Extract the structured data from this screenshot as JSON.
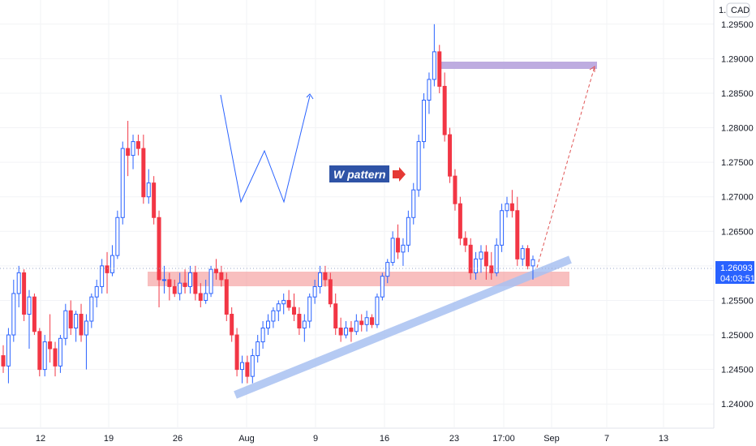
{
  "chart_data": {
    "type": "candlestick",
    "currency_badge": "CAD",
    "currency_prefix": "1.",
    "y_range": [
      1.2365,
      1.2985
    ],
    "y_ticks": [
      "1.24000",
      "1.24500",
      "1.25000",
      "1.25500",
      "1.26000",
      "1.26500",
      "1.27000",
      "1.27500",
      "1.28000",
      "1.28500",
      "1.29000",
      "1.29500"
    ],
    "x_ticks": [
      "12",
      "19",
      "26",
      "Aug",
      "9",
      "16",
      "23",
      "17:00",
      "Sep",
      "7",
      "13"
    ],
    "last_price": "1.26093",
    "countdown": "04:03:51",
    "annotation": "W pattern",
    "candles": [
      [
        1.247,
        1.2485,
        1.2445,
        1.2455
      ],
      [
        1.2455,
        1.251,
        1.243,
        1.25
      ],
      [
        1.25,
        1.258,
        1.249,
        1.256
      ],
      [
        1.256,
        1.26,
        1.254,
        1.259
      ],
      [
        1.259,
        1.2595,
        1.252,
        1.253
      ],
      [
        1.253,
        1.2565,
        1.248,
        1.2555
      ],
      [
        1.2555,
        1.256,
        1.25,
        1.2505
      ],
      [
        1.2505,
        1.251,
        1.244,
        1.245
      ],
      [
        1.245,
        1.25,
        1.244,
        1.249
      ],
      [
        1.249,
        1.253,
        1.246,
        1.248
      ],
      [
        1.248,
        1.249,
        1.244,
        1.2455
      ],
      [
        1.2455,
        1.25,
        1.2445,
        1.2495
      ],
      [
        1.2495,
        1.2545,
        1.2485,
        1.2535
      ],
      [
        1.2535,
        1.255,
        1.25,
        1.251
      ],
      [
        1.251,
        1.2535,
        1.249,
        1.253
      ],
      [
        1.253,
        1.2545,
        1.249,
        1.25
      ],
      [
        1.25,
        1.253,
        1.245,
        1.252
      ],
      [
        1.252,
        1.256,
        1.251,
        1.2555
      ],
      [
        1.2555,
        1.258,
        1.254,
        1.257
      ],
      [
        1.257,
        1.261,
        1.256,
        1.26
      ],
      [
        1.26,
        1.262,
        1.256,
        1.259
      ],
      [
        1.259,
        1.263,
        1.2585,
        1.2615
      ],
      [
        1.2615,
        1.268,
        1.261,
        1.267
      ],
      [
        1.267,
        1.278,
        1.266,
        1.277
      ],
      [
        1.277,
        1.281,
        1.273,
        1.276
      ],
      [
        1.276,
        1.279,
        1.274,
        1.278
      ],
      [
        1.278,
        1.279,
        1.276,
        1.277
      ],
      [
        1.277,
        1.279,
        1.269,
        1.27
      ],
      [
        1.27,
        1.274,
        1.269,
        1.272
      ],
      [
        1.272,
        1.273,
        1.266,
        1.267
      ],
      [
        1.267,
        1.268,
        1.254,
        1.258
      ],
      [
        1.258,
        1.26,
        1.256,
        1.258
      ],
      [
        1.258,
        1.259,
        1.255,
        1.257
      ],
      [
        1.257,
        1.258,
        1.2555,
        1.256
      ],
      [
        1.256,
        1.259,
        1.255,
        1.2575
      ],
      [
        1.2575,
        1.2595,
        1.256,
        1.257
      ],
      [
        1.257,
        1.26,
        1.256,
        1.259
      ],
      [
        1.259,
        1.26,
        1.255,
        1.256
      ],
      [
        1.256,
        1.2575,
        1.254,
        1.255
      ],
      [
        1.255,
        1.258,
        1.2545,
        1.256
      ],
      [
        1.256,
        1.26,
        1.2555,
        1.2595
      ],
      [
        1.2595,
        1.261,
        1.258,
        1.259
      ],
      [
        1.259,
        1.26,
        1.257,
        1.258
      ],
      [
        1.258,
        1.259,
        1.252,
        1.253
      ],
      [
        1.253,
        1.254,
        1.249,
        1.25
      ],
      [
        1.25,
        1.251,
        1.244,
        1.245
      ],
      [
        1.245,
        1.247,
        1.243,
        1.246
      ],
      [
        1.246,
        1.247,
        1.243,
        1.244
      ],
      [
        1.244,
        1.248,
        1.243,
        1.247
      ],
      [
        1.247,
        1.25,
        1.246,
        1.249
      ],
      [
        1.249,
        1.252,
        1.248,
        1.251
      ],
      [
        1.251,
        1.253,
        1.25,
        1.252
      ],
      [
        1.252,
        1.254,
        1.251,
        1.2535
      ],
      [
        1.2535,
        1.255,
        1.252,
        1.2545
      ],
      [
        1.2545,
        1.256,
        1.253,
        1.255
      ],
      [
        1.255,
        1.2565,
        1.2535,
        1.254
      ],
      [
        1.254,
        1.256,
        1.252,
        1.253
      ],
      [
        1.253,
        1.254,
        1.25,
        1.251
      ],
      [
        1.251,
        1.253,
        1.249,
        1.252
      ],
      [
        1.252,
        1.256,
        1.251,
        1.2555
      ],
      [
        1.2555,
        1.258,
        1.2545,
        1.257
      ],
      [
        1.257,
        1.26,
        1.256,
        1.259
      ],
      [
        1.259,
        1.26,
        1.257,
        1.258
      ],
      [
        1.258,
        1.259,
        1.254,
        1.2545
      ],
      [
        1.2545,
        1.256,
        1.25,
        1.251
      ],
      [
        1.251,
        1.2525,
        1.249,
        1.25
      ],
      [
        1.25,
        1.252,
        1.2495,
        1.251
      ],
      [
        1.251,
        1.252,
        1.249,
        1.2505
      ],
      [
        1.2505,
        1.253,
        1.25,
        1.252
      ],
      [
        1.252,
        1.253,
        1.2505,
        1.2515
      ],
      [
        1.2515,
        1.2535,
        1.2505,
        1.2525
      ],
      [
        1.2525,
        1.253,
        1.251,
        1.2515
      ],
      [
        1.2515,
        1.256,
        1.251,
        1.2555
      ],
      [
        1.2555,
        1.259,
        1.255,
        1.2585
      ],
      [
        1.2585,
        1.261,
        1.2575,
        1.2605
      ],
      [
        1.2605,
        1.265,
        1.26,
        1.264
      ],
      [
        1.264,
        1.266,
        1.261,
        1.262
      ],
      [
        1.262,
        1.264,
        1.26,
        1.263
      ],
      [
        1.263,
        1.268,
        1.262,
        1.267
      ],
      [
        1.267,
        1.272,
        1.266,
        1.271
      ],
      [
        1.271,
        1.279,
        1.27,
        1.278
      ],
      [
        1.278,
        1.285,
        1.277,
        1.284
      ],
      [
        1.284,
        1.288,
        1.282,
        1.287
      ],
      [
        1.287,
        1.295,
        1.286,
        1.291
      ],
      [
        1.291,
        1.292,
        1.285,
        1.286
      ],
      [
        1.286,
        1.288,
        1.278,
        1.279
      ],
      [
        1.279,
        1.28,
        1.272,
        1.273
      ],
      [
        1.273,
        1.274,
        1.268,
        1.269
      ],
      [
        1.269,
        1.27,
        1.263,
        1.264
      ],
      [
        1.264,
        1.265,
        1.262,
        1.263
      ],
      [
        1.263,
        1.264,
        1.258,
        1.259
      ],
      [
        1.259,
        1.262,
        1.258,
        1.261
      ],
      [
        1.261,
        1.263,
        1.259,
        1.262
      ],
      [
        1.262,
        1.263,
        1.258,
        1.26
      ],
      [
        1.26,
        1.262,
        1.258,
        1.259
      ],
      [
        1.259,
        1.264,
        1.2585,
        1.263
      ],
      [
        1.263,
        1.269,
        1.262,
        1.268
      ],
      [
        1.268,
        1.27,
        1.267,
        1.269
      ],
      [
        1.269,
        1.271,
        1.267,
        1.268
      ],
      [
        1.268,
        1.27,
        1.26,
        1.261
      ],
      [
        1.261,
        1.263,
        1.26,
        1.2625
      ],
      [
        1.2625,
        1.263,
        1.2595,
        1.26
      ],
      [
        1.26,
        1.2615,
        1.258,
        1.2609
      ]
    ]
  }
}
